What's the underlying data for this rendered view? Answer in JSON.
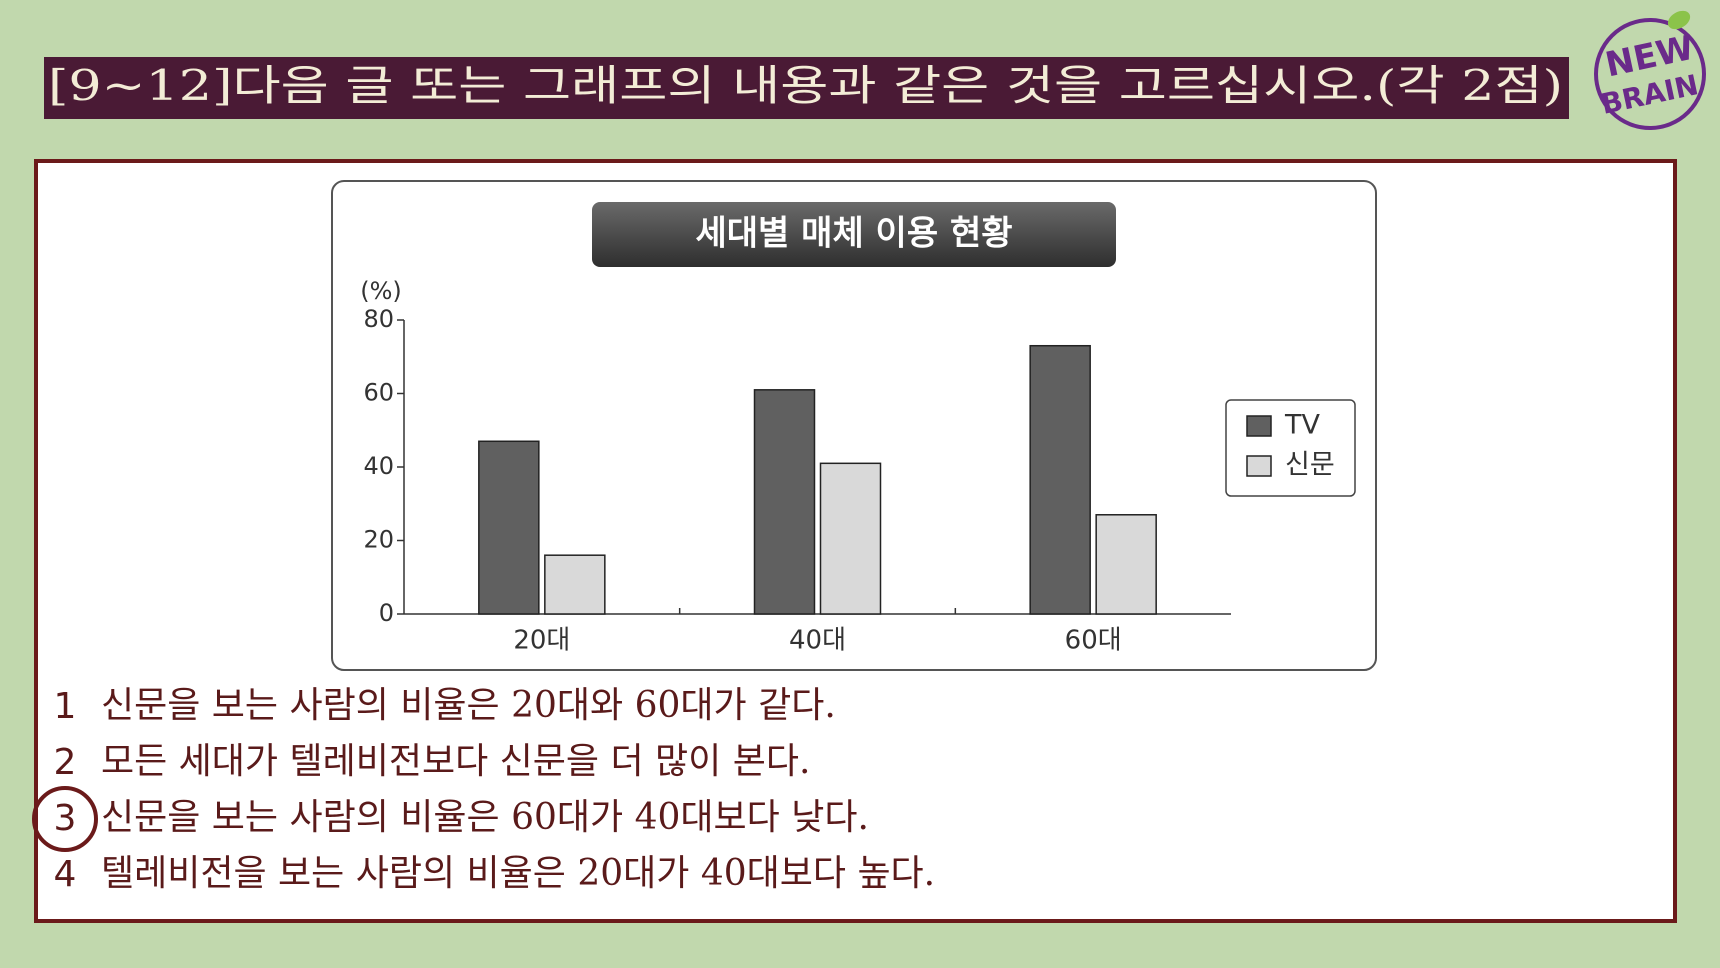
{
  "header": {
    "title": "[9~12]다음 글 또는 그래프의 내용과 같은 것을 고르십시오.(각 2점)"
  },
  "logo": {
    "line1": "NEW",
    "line2": "BRAIN"
  },
  "chart_data": {
    "type": "bar",
    "title": "세대별 매체 이용 현황",
    "y_label": "(%)",
    "categories": [
      "20대",
      "40대",
      "60대"
    ],
    "series": [
      {
        "name": "TV",
        "color": "#606060",
        "values": [
          47,
          61,
          73
        ]
      },
      {
        "name": "신문",
        "color": "#d9d9d9",
        "values": [
          16,
          41,
          27
        ]
      }
    ],
    "ylim": [
      0,
      80
    ],
    "yticks": [
      0,
      20,
      40,
      60,
      80
    ],
    "grid": false,
    "legend": "right"
  },
  "options": [
    {
      "number": "1",
      "text": "신문을 보는 사람의 비율은 20대와 60대가 같다."
    },
    {
      "number": "2",
      "text": "모든 세대가 텔레비전보다 신문을 더 많이 본다."
    },
    {
      "number": "3",
      "text": "신문을 보는 사람의 비율은 60대가 40대보다 낮다."
    },
    {
      "number": "4",
      "text": "텔레비전을 보는 사람의 비율은 20대가 40대보다 높다."
    }
  ]
}
